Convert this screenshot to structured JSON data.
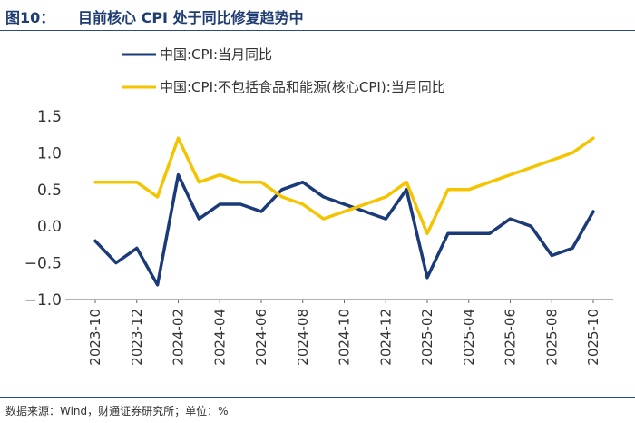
{
  "header": {
    "figure_number": "图10：",
    "title": "目前核心 CPI 处于同比修复趋势中"
  },
  "footer": {
    "source": "数据来源：Wind，财通证券研究所；单位：%"
  },
  "colors": {
    "series_1": "#1a3a7a",
    "series_2": "#f5c400",
    "rule": "#2a4a86"
  },
  "chart_data": {
    "type": "line",
    "x": [
      "2023-10",
      "2023-11",
      "2023-12",
      "2024-01",
      "2024-02",
      "2024-03",
      "2024-04",
      "2024-05",
      "2024-06",
      "2024-07",
      "2024-08",
      "2024-09",
      "2024-10",
      "2024-11",
      "2024-12",
      "2025-01",
      "2025-02",
      "2025-03",
      "2025-04",
      "2025-05",
      "2025-06",
      "2025-07",
      "2025-08",
      "2025-09",
      "2025-10"
    ],
    "x_tick_labels": [
      "2023-10",
      "2023-12",
      "2024-02",
      "2024-04",
      "2024-06",
      "2024-08",
      "2024-10",
      "2024-12",
      "2025-02",
      "2025-04",
      "2025-06",
      "2025-08",
      "2025-10"
    ],
    "series": [
      {
        "name": "中国:CPI:当月同比",
        "values": [
          -0.2,
          -0.5,
          -0.3,
          -0.8,
          0.7,
          0.1,
          0.3,
          0.3,
          0.2,
          0.5,
          0.6,
          0.4,
          0.3,
          0.2,
          0.1,
          0.5,
          -0.7,
          -0.1,
          -0.1,
          -0.1,
          0.1,
          0.0,
          -0.4,
          -0.3,
          0.2
        ]
      },
      {
        "name": "中国:CPI:不包括食品和能源(核心CPI):当月同比",
        "values": [
          0.6,
          0.6,
          0.6,
          0.4,
          1.2,
          0.6,
          0.7,
          0.6,
          0.6,
          0.4,
          0.3,
          0.1,
          0.2,
          0.3,
          0.4,
          0.6,
          -0.1,
          0.5,
          0.5,
          0.6,
          0.7,
          0.8,
          0.9,
          1.0,
          1.2
        ]
      }
    ],
    "y_ticks": [
      "1.5",
      "1.0",
      "0.5",
      "0.0",
      "−0.5",
      "−1.0"
    ],
    "ylim": [
      -1.0,
      1.5
    ],
    "legend_position": "top",
    "grid": false
  }
}
